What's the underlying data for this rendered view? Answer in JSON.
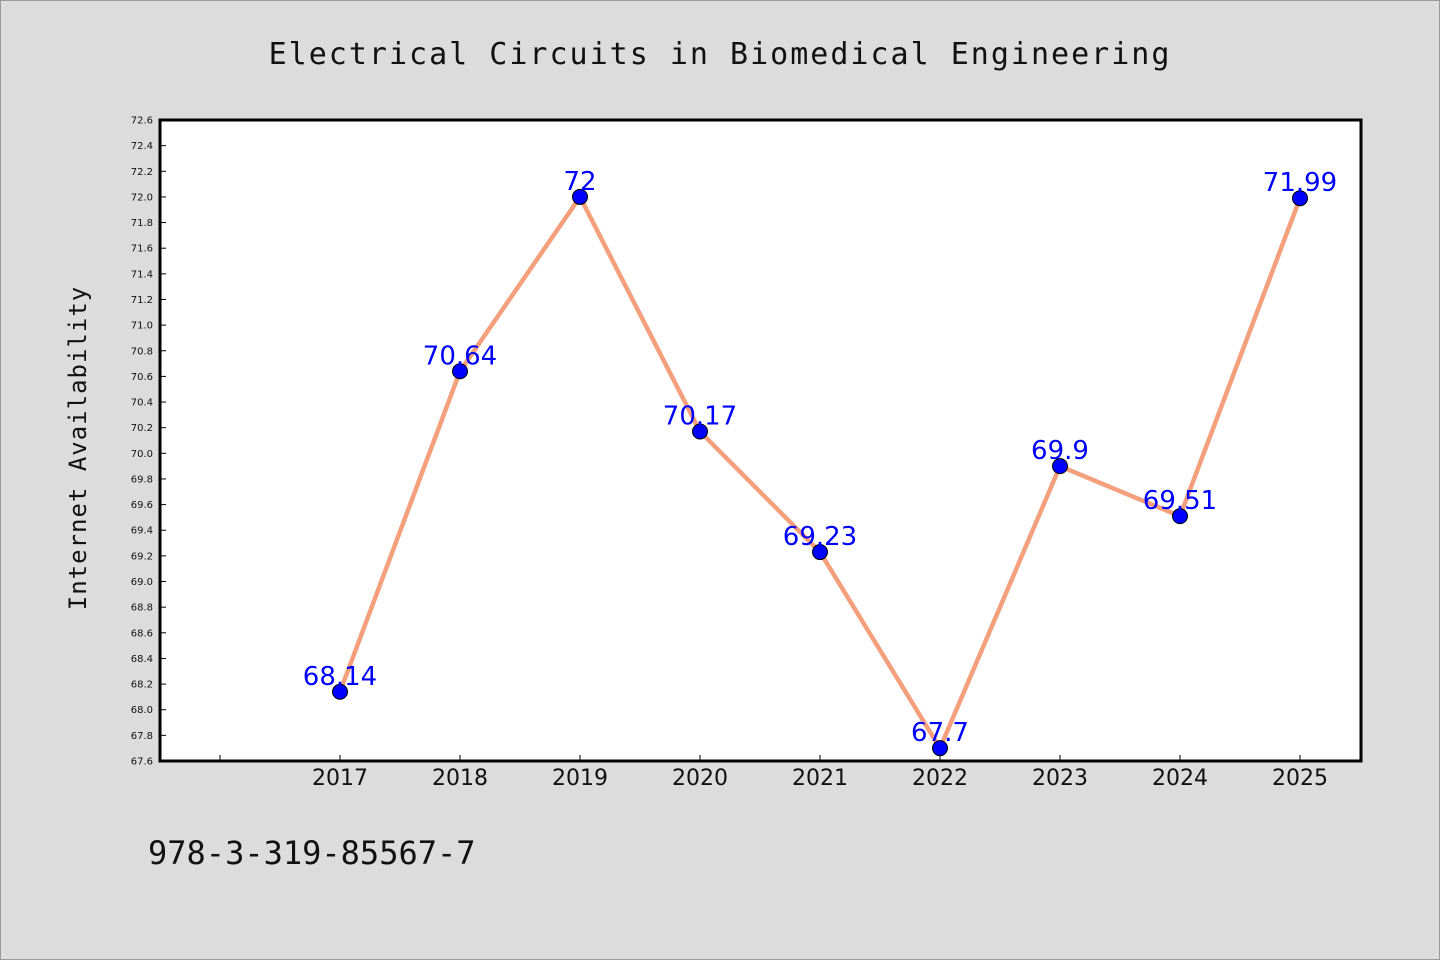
{
  "chart_data": {
    "type": "line",
    "title": "Electrical Circuits in Biomedical Engineering",
    "xlabel": "",
    "ylabel": "Internet Availability",
    "categories": [
      "2017",
      "2018",
      "2019",
      "2020",
      "2021",
      "2022",
      "2023",
      "2024",
      "2025"
    ],
    "series": [
      {
        "values": [
          68.14,
          70.64,
          72,
          70.17,
          69.23,
          67.7,
          69.9,
          69.51,
          71.99
        ],
        "labels": [
          "68.14",
          "70.64",
          "72",
          "70.17",
          "69.23",
          "67.7",
          "69.9",
          "69.51",
          "71.99"
        ],
        "line_color": "#f4a07c",
        "marker_color": "#0000ff"
      }
    ],
    "ylim": [
      67.6,
      72.6
    ],
    "yticks": [
      "67.6",
      "67.8",
      "68.0",
      "68.2",
      "68.4",
      "68.6",
      "68.8",
      "69.0",
      "69.2",
      "69.4",
      "69.6",
      "69.8",
      "70.0",
      "70.2",
      "70.4",
      "70.6",
      "70.8",
      "71.0",
      "71.2",
      "71.4",
      "71.6",
      "71.8",
      "72.0",
      "72.2",
      "72.4",
      "72.6"
    ],
    "grid": false,
    "legend": "none"
  },
  "footer": {
    "isbn": "978-3-319-85567-7"
  },
  "colors": {
    "background": "#dcdcdc",
    "plot_background": "#ffffff",
    "line": "#f4a07c",
    "marker": "#0000ff",
    "data_label": "#0000ff"
  }
}
